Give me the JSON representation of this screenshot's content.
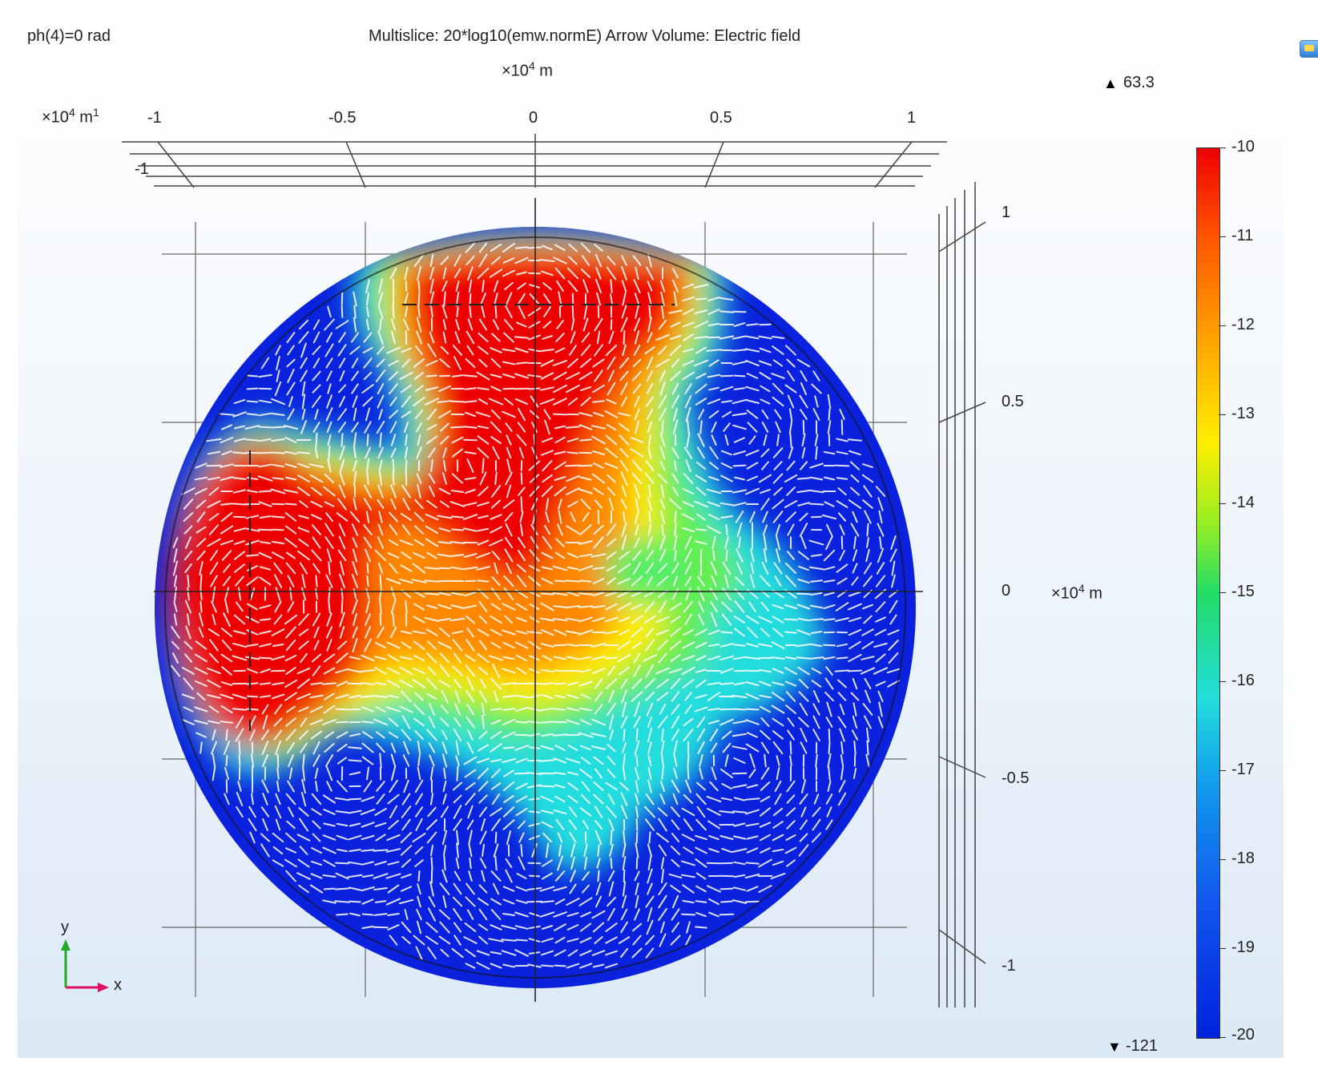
{
  "header": {
    "phase_label": "ph(4)=0 rad",
    "plot_title": "Multislice: 20*log10(emw.normE)  Arrow Volume: Electric field"
  },
  "axes": {
    "x_unit_prefix": "×10",
    "x_unit_exp": "4",
    "x_unit_suffix": " m",
    "corner_unit_prefix": "×10",
    "corner_unit_exp": "4",
    "corner_unit_suffix": " m",
    "corner_extra": "1",
    "x_ticks": [
      "-1",
      "-0.5",
      "0",
      "0.5",
      "1"
    ],
    "y_ticks": [
      "1",
      "0.5",
      "0",
      "-0.5",
      "-1"
    ],
    "z_tick": "-1",
    "y_unit_prefix": "×10",
    "y_unit_exp": "4",
    "y_unit_suffix": " m"
  },
  "colorbar": {
    "max_label": "63.3",
    "min_label": "-121",
    "ticks": [
      "-10",
      "-11",
      "-12",
      "-13",
      "-14",
      "-15",
      "-16",
      "-17",
      "-18",
      "-19",
      "-20"
    ]
  },
  "triad": {
    "x": "x",
    "y": "y"
  },
  "colors": {
    "hot": "#ee0000",
    "mid": "#ffee00",
    "cool": "#22dddd",
    "cold": "#0a22dd",
    "arrow": "#ffffff",
    "triad_x": "#e0115f",
    "triad_y": "#22aa22"
  },
  "icons": {
    "toolbar": "plot-settings-icon"
  }
}
